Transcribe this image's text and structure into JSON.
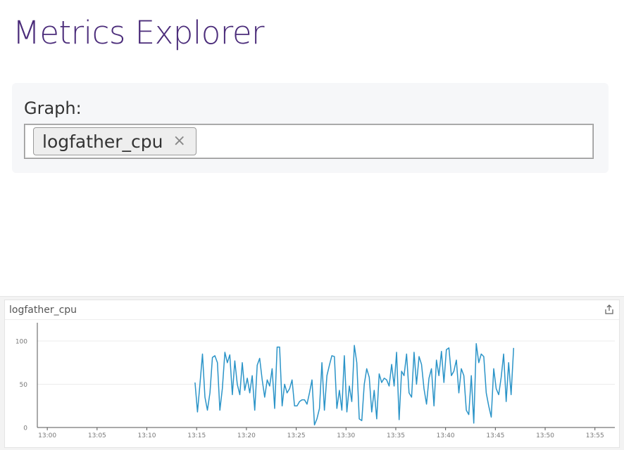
{
  "page": {
    "title": "Metrics Explorer"
  },
  "graph_form": {
    "label": "Graph:",
    "tags": [
      {
        "label": "logfather_cpu",
        "remove_symbol": "×"
      }
    ]
  },
  "chart_panel": {
    "title": "logfather_cpu",
    "share_icon": "share-icon"
  },
  "colors": {
    "title": "#4b2c7a",
    "series": "#2b94c8"
  },
  "chart_data": {
    "type": "line",
    "title": "logfather_cpu",
    "xlabel": "",
    "ylabel": "",
    "x_ticks": [
      "13:00",
      "13:05",
      "13:10",
      "13:15",
      "13:20",
      "13:25",
      "13:30",
      "13:35",
      "13:40",
      "13:45",
      "13:50",
      "13:55"
    ],
    "y_ticks": [
      0,
      50,
      100
    ],
    "xlim": [
      "12:59",
      "13:57"
    ],
    "ylim": [
      0,
      100
    ],
    "series": [
      {
        "name": "logfather_cpu",
        "x_start": "13:14:50",
        "step_seconds": 15,
        "values": [
          52,
          18,
          50,
          85,
          35,
          20,
          40,
          81,
          83,
          75,
          20,
          45,
          87,
          75,
          84,
          38,
          77,
          50,
          38,
          75,
          43,
          57,
          40,
          60,
          20,
          72,
          80,
          55,
          35,
          55,
          48,
          68,
          22,
          93,
          93,
          25,
          50,
          40,
          45,
          55,
          25,
          25,
          30,
          32,
          32,
          27,
          40,
          55,
          3,
          10,
          22,
          75,
          20,
          60,
          72,
          83,
          82,
          22,
          43,
          20,
          83,
          18,
          48,
          30,
          95,
          75,
          10,
          8,
          50,
          68,
          58,
          18,
          43,
          10,
          62,
          52,
          57,
          55,
          48,
          73,
          48,
          87,
          9,
          65,
          60,
          85,
          40,
          35,
          87,
          50,
          82,
          73,
          45,
          27,
          57,
          68,
          25,
          78,
          60,
          88,
          52,
          90,
          92,
          60,
          65,
          78,
          40,
          68,
          60,
          20,
          15,
          60,
          5,
          97,
          75,
          85,
          82,
          40,
          25,
          12,
          68,
          45,
          38,
          58,
          85,
          30,
          75,
          38,
          92
        ]
      }
    ]
  }
}
